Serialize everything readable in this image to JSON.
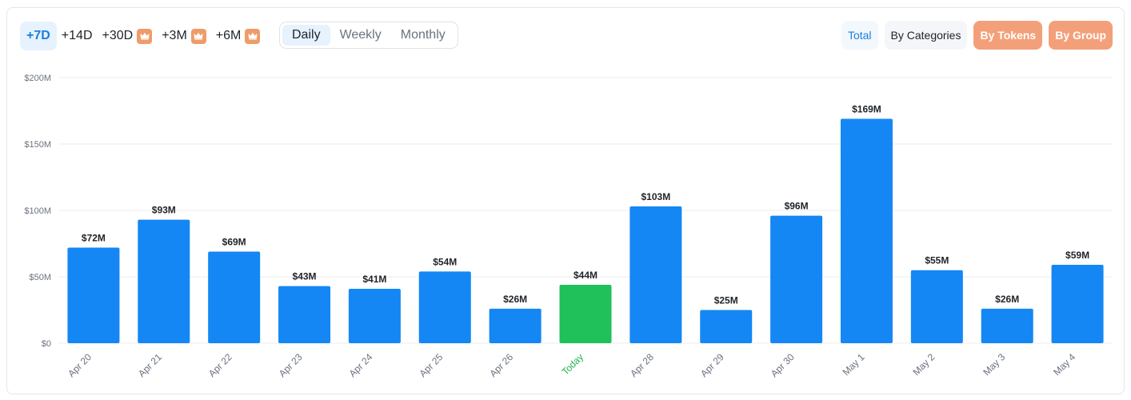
{
  "toolbar": {
    "ranges": [
      {
        "label": "+7D",
        "active": true,
        "premium": false
      },
      {
        "label": "+14D",
        "active": false,
        "premium": false
      },
      {
        "label": "+30D",
        "active": false,
        "premium": true
      },
      {
        "label": "+3M",
        "active": false,
        "premium": true
      },
      {
        "label": "+6M",
        "active": false,
        "premium": true
      }
    ],
    "periods": [
      {
        "label": "Daily",
        "active": true
      },
      {
        "label": "Weekly",
        "active": false
      },
      {
        "label": "Monthly",
        "active": false
      }
    ],
    "views": [
      {
        "label": "Total"
      },
      {
        "label": "By Categories"
      },
      {
        "label": "By Tokens"
      },
      {
        "label": "By Group"
      }
    ],
    "premium_icon": "crown-icon"
  },
  "colors": {
    "bar": "#1487f5",
    "today_bar": "#20c15a",
    "today_label": "#22b24c",
    "accent": "#1a7fe0",
    "premium": "#f3a07a"
  },
  "chart_data": {
    "type": "bar",
    "categories": [
      "Apr 20",
      "Apr 21",
      "Apr 22",
      "Apr 23",
      "Apr 24",
      "Apr 25",
      "Apr 26",
      "Today",
      "Apr 28",
      "Apr 29",
      "Apr 30",
      "May 1",
      "May 2",
      "May 3",
      "May 4"
    ],
    "values": [
      72,
      93,
      69,
      43,
      41,
      54,
      26,
      44,
      103,
      25,
      96,
      169,
      55,
      26,
      59
    ],
    "data_labels": [
      "$72M",
      "$93M",
      "$69M",
      "$43M",
      "$41M",
      "$54M",
      "$26M",
      "$44M",
      "$103M",
      "$25M",
      "$96M",
      "$169M",
      "$55M",
      "$26M",
      "$59M"
    ],
    "highlight_category": "Today",
    "unit": "$M",
    "ylim": [
      0,
      200
    ],
    "yticks": [
      0,
      50,
      100,
      150,
      200
    ],
    "ytick_labels": [
      "$0",
      "$50M",
      "$100M",
      "$150M",
      "$200M"
    ],
    "grid": true,
    "title": "",
    "xlabel": "",
    "ylabel": ""
  }
}
